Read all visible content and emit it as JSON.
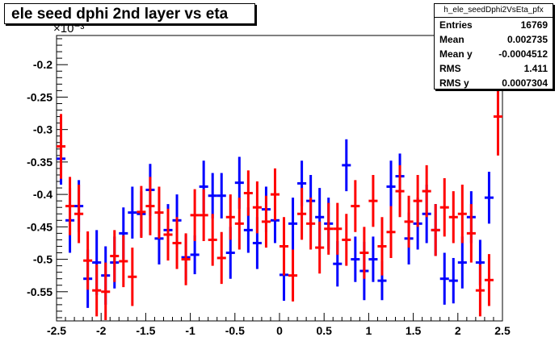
{
  "title": "ele seed dphi 2nd layer vs eta",
  "stats": {
    "name": "h_ele_seedDphi2VsEta_pfx",
    "rows": [
      {
        "label": "Entries",
        "value": "16769"
      },
      {
        "label": "Mean",
        "value": "0.002735"
      },
      {
        "label": "Mean y",
        "value": "-0.0004512"
      },
      {
        "label": "RMS",
        "value": "1.411"
      },
      {
        "label": "RMS y",
        "value": "0.0007304"
      }
    ]
  },
  "chart_data": {
    "type": "scatter",
    "title": "ele seed dphi 2nd layer vs eta",
    "xlabel": "",
    "ylabel": "",
    "y_multiplier_label": "×10⁻³",
    "xlim": [
      -2.5,
      2.5
    ],
    "ylim": [
      -0.595,
      -0.155
    ],
    "xticks": [
      -2.5,
      -2,
      -1.5,
      -1,
      -0.5,
      0,
      0.5,
      1,
      1.5,
      2,
      2.5
    ],
    "xtick_labels": [
      "-2.5",
      "-2",
      "-1.5",
      "-1",
      "-0.5",
      "0",
      "0.5",
      "1",
      "1.5",
      "2",
      "2.5"
    ],
    "yticks": [
      -0.55,
      -0.5,
      -0.45,
      -0.4,
      -0.35,
      -0.3,
      -0.25,
      -0.2
    ],
    "ytick_labels": [
      "-0.55",
      "-0.5",
      "-0.45",
      "-0.4",
      "-0.35",
      "-0.3",
      "-0.25",
      "-0.2"
    ],
    "grid": false,
    "series": [
      {
        "color": "#0000ff",
        "x": [
          -2.45,
          -2.35,
          -2.25,
          -2.15,
          -2.05,
          -1.95,
          -1.85,
          -1.75,
          -1.65,
          -1.55,
          -1.45,
          -1.35,
          -1.25,
          -1.15,
          -1.05,
          -0.95,
          -0.85,
          -0.75,
          -0.65,
          -0.55,
          -0.45,
          -0.35,
          -0.25,
          -0.15,
          -0.05,
          0.05,
          0.15,
          0.25,
          0.35,
          0.45,
          0.55,
          0.65,
          0.75,
          0.85,
          0.95,
          1.05,
          1.15,
          1.25,
          1.35,
          1.45,
          1.55,
          1.65,
          1.75,
          1.85,
          1.95,
          2.05,
          2.15,
          2.25,
          2.35,
          2.45
        ],
        "y": [
          -0.345,
          -0.44,
          -0.418,
          -0.53,
          -0.505,
          -0.525,
          -0.505,
          -0.46,
          -0.428,
          -0.43,
          -0.393,
          -0.468,
          -0.455,
          -0.44,
          -0.497,
          -0.493,
          -0.388,
          -0.402,
          -0.402,
          -0.49,
          -0.382,
          -0.455,
          -0.475,
          -0.423,
          -0.44,
          -0.524,
          -0.445,
          -0.383,
          -0.41,
          -0.435,
          -0.445,
          -0.507,
          -0.355,
          -0.5,
          -0.518,
          -0.5,
          -0.533,
          -0.388,
          -0.372,
          -0.468,
          -0.445,
          -0.43,
          -0.455,
          -0.53,
          -0.533,
          -0.505,
          -0.435,
          -0.505,
          -0.405,
          -0.235
        ],
        "err": [
          0.04,
          0.05,
          0.04,
          0.045,
          0.05,
          0.045,
          0.04,
          0.04,
          0.04,
          0.035,
          0.04,
          0.04,
          0.04,
          0.04,
          0.035,
          0.03,
          0.04,
          0.035,
          0.035,
          0.04,
          0.04,
          0.035,
          0.04,
          0.035,
          0.035,
          0.04,
          0.04,
          0.035,
          0.04,
          0.045,
          0.04,
          0.035,
          0.04,
          0.035,
          0.045,
          0.035,
          0.03,
          0.04,
          0.035,
          0.04,
          0.04,
          0.045,
          0.04,
          0.04,
          0.035,
          0.04,
          0.04,
          0.035,
          0.04,
          0.04
        ]
      },
      {
        "color": "#ff0000",
        "x": [
          -2.45,
          -2.35,
          -2.25,
          -2.15,
          -2.05,
          -1.95,
          -1.85,
          -1.75,
          -1.65,
          -1.55,
          -1.45,
          -1.35,
          -1.25,
          -1.15,
          -1.05,
          -0.95,
          -0.85,
          -0.75,
          -0.65,
          -0.55,
          -0.45,
          -0.35,
          -0.25,
          -0.15,
          -0.05,
          0.05,
          0.15,
          0.25,
          0.35,
          0.45,
          0.55,
          0.65,
          0.75,
          0.85,
          0.95,
          1.05,
          1.15,
          1.25,
          1.35,
          1.45,
          1.55,
          1.65,
          1.75,
          1.85,
          1.95,
          2.05,
          2.15,
          2.25,
          2.35,
          2.45
        ],
        "y": [
          -0.326,
          -0.418,
          -0.43,
          -0.502,
          -0.548,
          -0.55,
          -0.495,
          -0.503,
          -0.527,
          -0.427,
          -0.418,
          -0.428,
          -0.462,
          -0.475,
          -0.5,
          -0.432,
          -0.432,
          -0.47,
          -0.498,
          -0.435,
          -0.445,
          -0.398,
          -0.42,
          -0.442,
          -0.4,
          -0.48,
          -0.525,
          -0.43,
          -0.445,
          -0.482,
          -0.453,
          -0.453,
          -0.47,
          -0.418,
          -0.49,
          -0.41,
          -0.48,
          -0.458,
          -0.395,
          -0.442,
          -0.41,
          -0.395,
          -0.455,
          -0.42,
          -0.435,
          -0.43,
          -0.46,
          -0.548,
          -0.532,
          -0.28
        ],
        "err": [
          0.05,
          0.045,
          0.045,
          0.045,
          0.04,
          0.045,
          0.04,
          0.04,
          0.045,
          0.04,
          0.045,
          0.04,
          0.04,
          0.04,
          0.04,
          0.04,
          0.04,
          0.04,
          0.04,
          0.035,
          0.04,
          0.035,
          0.04,
          0.04,
          0.04,
          0.045,
          0.04,
          0.04,
          0.04,
          0.04,
          0.04,
          0.04,
          0.04,
          0.04,
          0.04,
          0.04,
          0.045,
          0.04,
          0.04,
          0.04,
          0.04,
          0.04,
          0.04,
          0.045,
          0.04,
          0.045,
          0.045,
          0.04,
          0.04,
          0.06
        ]
      }
    ]
  }
}
